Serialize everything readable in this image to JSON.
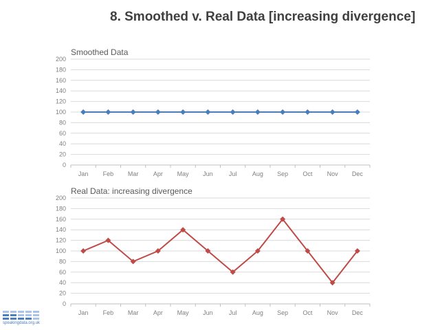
{
  "title": "8. Smoothed v. Real Data [increasing divergence]",
  "logo_text": "speakingdata.org.uk",
  "chart_data": [
    {
      "type": "line",
      "title": "Smoothed Data",
      "categories": [
        "Jan",
        "Feb",
        "Mar",
        "Apr",
        "May",
        "Jun",
        "Jul",
        "Aug",
        "Sep",
        "Oct",
        "Nov",
        "Dec"
      ],
      "values": [
        100,
        100,
        100,
        100,
        100,
        100,
        100,
        100,
        100,
        100,
        100,
        100
      ],
      "ylim": [
        0,
        200
      ],
      "yticks": [
        0,
        20,
        40,
        60,
        80,
        100,
        120,
        140,
        160,
        180,
        200
      ],
      "color": "#4a7ebb",
      "marker": "diamond",
      "grid": true,
      "xlabel": "",
      "ylabel": ""
    },
    {
      "type": "line",
      "title": "Real Data: increasing divergence",
      "categories": [
        "Jan",
        "Feb",
        "Mar",
        "Apr",
        "May",
        "Jun",
        "Jul",
        "Aug",
        "Sep",
        "Oct",
        "Nov",
        "Dec"
      ],
      "values": [
        100,
        120,
        80,
        100,
        140,
        100,
        60,
        100,
        160,
        100,
        40,
        100
      ],
      "ylim": [
        0,
        200
      ],
      "yticks": [
        0,
        20,
        40,
        60,
        80,
        100,
        120,
        140,
        160,
        180,
        200
      ],
      "color": "#be4b48",
      "marker": "diamond",
      "grid": true,
      "xlabel": "",
      "ylabel": ""
    }
  ]
}
